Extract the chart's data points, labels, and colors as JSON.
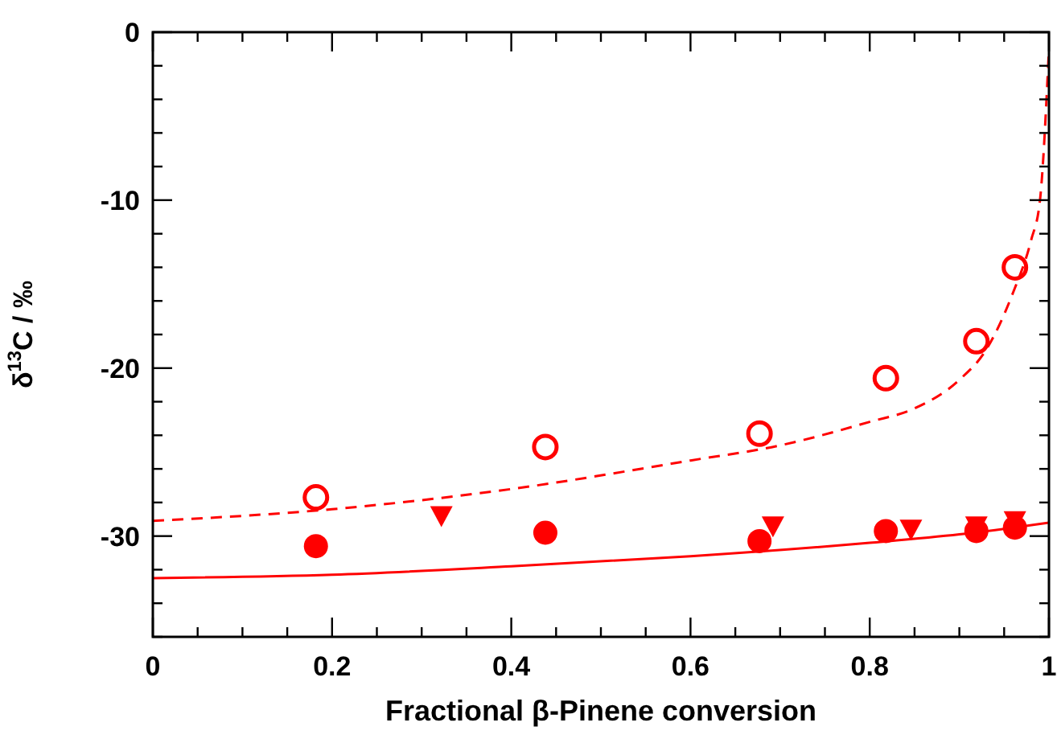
{
  "chart_data": {
    "type": "scatter",
    "xlabel": "Fractional β-Pinene conversion",
    "ylabel": "δ$^{13}$C / ‰",
    "xlim": [
      0,
      1
    ],
    "ylim": [
      -36,
      0
    ],
    "xticks": [
      0,
      {
        "value": 0.05,
        "label": null
      },
      {
        "value": 0.1,
        "label": null
      },
      {
        "value": 0.15,
        "label": null
      },
      0.2,
      {
        "value": 0.25,
        "label": null
      },
      {
        "value": 0.3,
        "label": null
      },
      {
        "value": 0.35,
        "label": null
      },
      0.4,
      {
        "value": 0.45,
        "label": null
      },
      {
        "value": 0.5,
        "label": null
      },
      {
        "value": 0.55,
        "label": null
      },
      0.6,
      {
        "value": 0.65,
        "label": null
      },
      {
        "value": 0.7,
        "label": null
      },
      {
        "value": 0.75,
        "label": null
      },
      0.8,
      {
        "value": 0.85,
        "label": null
      },
      {
        "value": 0.9,
        "label": null
      },
      {
        "value": 0.95,
        "label": null
      },
      1
    ],
    "yticks": [
      {
        "value": -36,
        "label": null
      },
      {
        "value": -34,
        "label": null
      },
      {
        "value": -32,
        "label": null
      },
      -30,
      {
        "value": -28,
        "label": null
      },
      {
        "value": -26,
        "label": null
      },
      {
        "value": -24,
        "label": null
      },
      {
        "value": -22,
        "label": null
      },
      -20,
      {
        "value": -18,
        "label": null
      },
      {
        "value": -16,
        "label": null
      },
      {
        "value": -14,
        "label": null
      },
      {
        "value": -12,
        "label": null
      },
      -10,
      {
        "value": -8,
        "label": null
      },
      {
        "value": -6,
        "label": null
      },
      {
        "value": -4,
        "label": null
      },
      {
        "value": -2,
        "label": null
      },
      0
    ],
    "grid": false,
    "series": [
      {
        "type": "scatter",
        "marker": "circle",
        "color": "#ff0000",
        "x": [
          0.182,
          0.438,
          0.677,
          0.818,
          0.919,
          0.962
        ],
        "values": [
          -27.7,
          -24.7,
          -23.9,
          -20.6,
          -18.4,
          -14.0
        ]
      },
      {
        "type": "scatter",
        "marker": "circle",
        "color": "#ff0000",
        "x": [
          0.182,
          0.438,
          0.677,
          0.818,
          0.919,
          0.962
        ],
        "values": [
          -30.6,
          -29.8,
          -30.3,
          -29.7,
          -29.7,
          -29.5
        ]
      },
      {
        "type": "scatter",
        "marker": "triangle",
        "color": "#ff0000",
        "x": [
          0.322,
          0.692,
          0.846,
          0.919,
          0.962
        ],
        "values": [
          -28.8,
          -29.4,
          -29.6,
          -29.4,
          -29.1
        ]
      },
      {
        "type": "line",
        "line_style": "solid",
        "color": "#ff0000",
        "x": [
          0,
          0.2,
          0.4,
          0.6,
          0.8,
          0.9,
          1
        ],
        "values": [
          -32.5,
          -32.3,
          -31.8,
          -31.2,
          -30.4,
          -29.9,
          -29.2
        ]
      },
      {
        "type": "line",
        "line_style": "dashed",
        "color": "#ff0000",
        "x": [
          0,
          0.2,
          0.4,
          0.6,
          0.7,
          0.8,
          0.85,
          0.9,
          0.93,
          0.96,
          0.98,
          0.99,
          1
        ],
        "values": [
          -29.1,
          -28.4,
          -27.2,
          -25.5,
          -24.6,
          -23.2,
          -22.4,
          -20.7,
          -18.9,
          -15.5,
          -12.4,
          -10,
          -1
        ]
      }
    ]
  }
}
